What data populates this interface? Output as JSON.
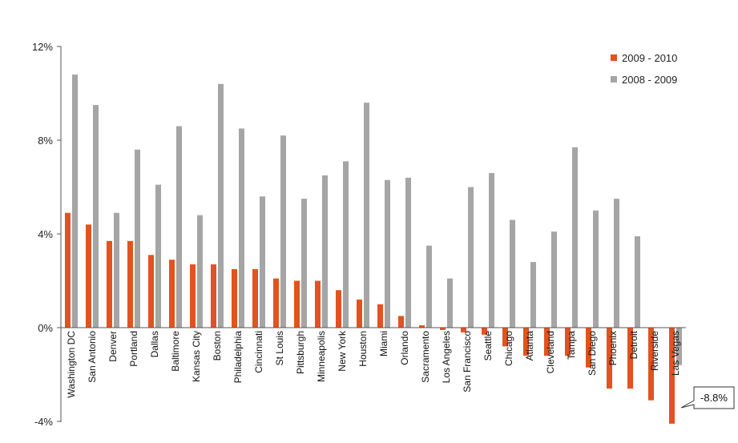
{
  "chart_data": {
    "type": "bar",
    "title": "",
    "xlabel": "",
    "ylabel": "",
    "ylim": [
      -4,
      12
    ],
    "yticks": [
      -4,
      0,
      4,
      8,
      12
    ],
    "ytick_labels": [
      "-4%",
      "0%",
      "4%",
      "8%",
      "12%"
    ],
    "categories": [
      "Washington DC",
      "San Antonio",
      "Denver",
      "Portland",
      "Dallas",
      "Baltimore",
      "Kansas City",
      "Boston",
      "Philadelphia",
      "Cincinnati",
      "St Louis",
      "Pittsburgh",
      "Minneapolis",
      "New York",
      "Houston",
      "Miami",
      "Orlando",
      "Sacramento",
      "Los Angeles",
      "San Francisco",
      "Seattle",
      "Chicago",
      "Atlanta",
      "Cleveland",
      "Tampa",
      "San Diego",
      "Phoenix",
      "Detroit",
      "Riverside",
      "Las Vegas"
    ],
    "series": [
      {
        "name": "2009 - 2010",
        "color": "#e2531f",
        "values": [
          4.9,
          4.4,
          3.7,
          3.7,
          3.1,
          2.9,
          2.7,
          2.7,
          2.5,
          2.5,
          2.1,
          2.0,
          2.0,
          1.6,
          1.2,
          1.0,
          0.5,
          0.1,
          -0.1,
          -0.2,
          -0.3,
          -0.8,
          -1.2,
          -1.2,
          -1.2,
          -1.7,
          -2.6,
          -2.6,
          -3.1,
          -4.1
        ]
      },
      {
        "name": "2008 - 2009",
        "color": "#a5a5a5",
        "values": [
          10.8,
          9.5,
          4.9,
          7.6,
          6.1,
          8.6,
          4.8,
          10.4,
          8.5,
          5.6,
          8.2,
          5.5,
          6.5,
          7.1,
          9.6,
          6.3,
          6.4,
          3.5,
          2.1,
          6.0,
          6.6,
          4.6,
          2.8,
          4.1,
          7.7,
          5.0,
          5.5,
          3.9,
          0.0,
          -1.6
        ]
      }
    ],
    "grid": false,
    "legend_position": "top-right",
    "annotations": [
      {
        "text": "-8.8%",
        "category": "Las Vegas"
      }
    ]
  }
}
